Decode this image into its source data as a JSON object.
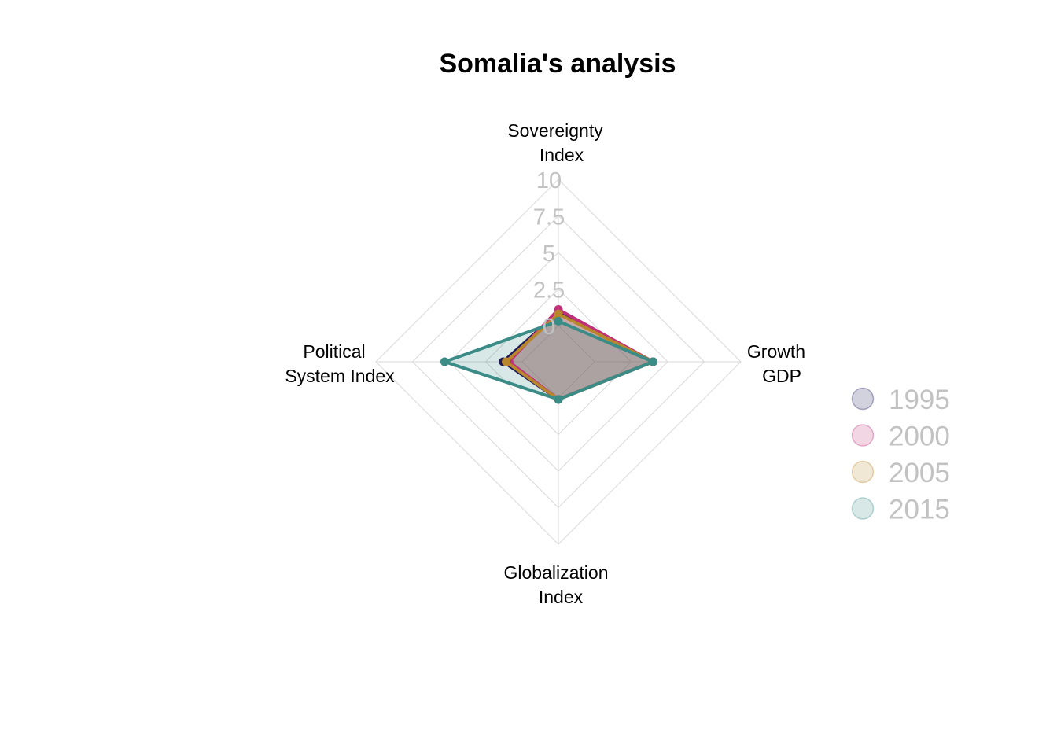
{
  "chart_data": {
    "type": "radar",
    "title": "Somalia's analysis",
    "axes": [
      [
        "Sovereignty",
        "Index"
      ],
      [
        "Growth",
        "GDP"
      ],
      [
        "Globalization",
        "Index"
      ],
      [
        "Political",
        "System Index"
      ]
    ],
    "range": [
      0,
      10
    ],
    "ticks": [
      "0",
      "2.5",
      "5",
      "7.5",
      "10"
    ],
    "tick_values": [
      0,
      2.5,
      5,
      7.5,
      10
    ],
    "grid": true,
    "legend_position": "right",
    "series": [
      {
        "name": "1995",
        "color": "#1f1a5c",
        "values": [
          0.9,
          4.0,
          0.1,
          1.3
        ]
      },
      {
        "name": "2000",
        "color": "#c0307a",
        "values": [
          1.1,
          4.0,
          0.1,
          0.9
        ]
      },
      {
        "name": "2005",
        "color": "#b8862b",
        "values": [
          0.8,
          4.0,
          0.1,
          1.1
        ]
      },
      {
        "name": "2015",
        "color": "#3b8c86",
        "values": [
          0.3,
          4.0,
          0.1,
          5.3
        ]
      }
    ]
  }
}
